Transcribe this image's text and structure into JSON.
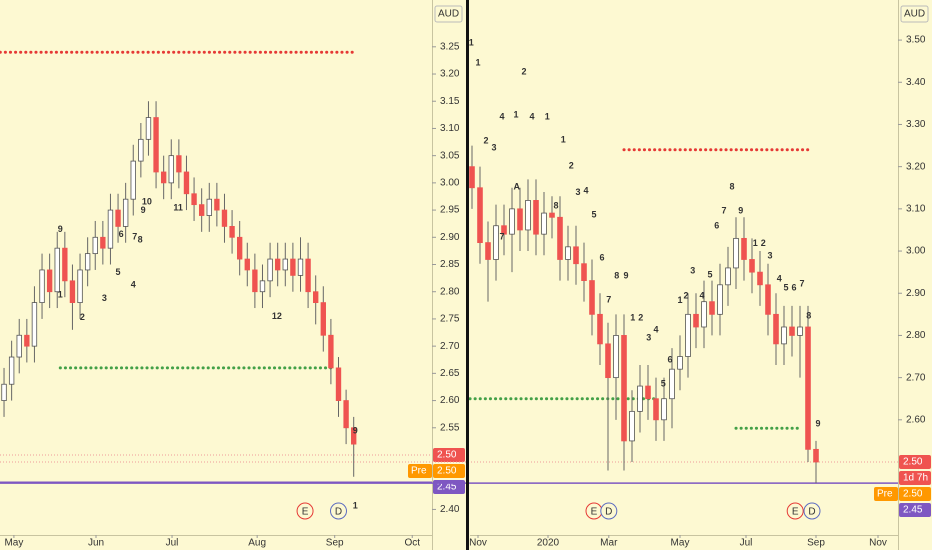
{
  "chart_data": [
    {
      "type": "candlestick",
      "currency": "AUD",
      "ylim": [
        2.353,
        3.336
      ],
      "yticks": [
        3.25,
        {
          "value": 3.2,
          "label": "3.20"
        },
        3.15,
        {
          "value": 3.1,
          "label": "3.10"
        },
        3.05,
        {
          "value": 3,
          "label": "3.00"
        },
        2.95,
        {
          "value": 2.9,
          "label": "2.90"
        },
        2.85,
        {
          "value": 2.8,
          "label": "2.80"
        },
        2.75,
        {
          "value": 2.7,
          "label": "2.70"
        },
        2.65,
        {
          "value": 2.6,
          "label": "2.60"
        },
        2.55,
        {
          "value": 2.4,
          "label": "2.40"
        }
      ],
      "xlim": [
        -0.53,
        56.3
      ],
      "xticks": [
        {
          "value": 1.3,
          "label": "May"
        },
        {
          "value": 12.1,
          "label": "Jun"
        },
        {
          "value": 22.1,
          "label": "Jul"
        },
        {
          "value": 33.3,
          "label": "Aug"
        },
        {
          "value": 43.5,
          "label": "Sep"
        },
        {
          "value": 53.7,
          "label": "Oct"
        }
      ],
      "up_color": "#ffffff",
      "down_color": "#ef5350",
      "open": [
        2.6,
        2.63,
        2.68,
        2.72,
        2.7,
        2.78,
        2.84,
        2.8,
        2.88,
        2.82,
        2.78,
        2.84,
        2.87,
        2.9,
        2.88,
        2.95,
        2.92,
        2.97,
        3.04,
        3.08,
        3.12,
        3.02,
        3.0,
        3.05,
        3.02,
        2.98,
        2.96,
        2.94,
        2.97,
        2.95,
        2.92,
        2.9,
        2.86,
        2.84,
        2.8,
        2.82,
        2.86,
        2.84,
        2.86,
        2.83,
        2.86,
        2.8,
        2.78,
        2.72,
        2.66,
        2.6,
        2.55
      ],
      "high": [
        2.66,
        2.71,
        2.75,
        2.75,
        2.81,
        2.87,
        2.87,
        2.91,
        2.91,
        2.85,
        2.87,
        2.9,
        2.93,
        2.93,
        2.98,
        2.98,
        3.0,
        3.07,
        3.11,
        3.15,
        3.15,
        3.05,
        3.08,
        3.08,
        3.05,
        3.01,
        2.99,
        3.0,
        3.0,
        2.98,
        2.95,
        2.93,
        2.89,
        2.87,
        2.85,
        2.89,
        2.89,
        2.89,
        2.89,
        2.9,
        2.89,
        2.83,
        2.81,
        2.75,
        2.68,
        2.62,
        2.57
      ],
      "low": [
        2.57,
        2.6,
        2.65,
        2.67,
        2.67,
        2.75,
        2.77,
        2.77,
        2.79,
        2.73,
        2.75,
        2.81,
        2.84,
        2.85,
        2.85,
        2.89,
        2.89,
        2.94,
        3.01,
        3.05,
        2.99,
        2.97,
        2.97,
        2.99,
        2.95,
        2.93,
        2.91,
        2.91,
        2.92,
        2.89,
        2.87,
        2.83,
        2.81,
        2.77,
        2.77,
        2.79,
        2.81,
        2.81,
        2.8,
        2.8,
        2.77,
        2.74,
        2.69,
        2.63,
        2.57,
        2.52,
        2.46
      ],
      "close": [
        2.63,
        2.68,
        2.72,
        2.7,
        2.78,
        2.84,
        2.8,
        2.88,
        2.82,
        2.78,
        2.84,
        2.87,
        2.9,
        2.88,
        2.95,
        2.92,
        2.97,
        3.04,
        3.08,
        3.12,
        3.02,
        3.0,
        3.05,
        3.02,
        2.98,
        2.96,
        2.94,
        2.97,
        2.95,
        2.92,
        2.9,
        2.86,
        2.84,
        2.8,
        2.82,
        2.86,
        2.84,
        2.86,
        2.83,
        2.86,
        2.8,
        2.78,
        2.72,
        2.66,
        2.6,
        2.55,
        2.52
      ],
      "levels": [
        {
          "value": 3.24,
          "x": [
            -0.5,
            46
          ],
          "color": "#e53935",
          "style": "dotted"
        },
        {
          "value": 2.66,
          "x": [
            7.4,
            43.5
          ],
          "color": "#43a047",
          "style": "dotted"
        },
        {
          "value": 2.5,
          "color": "#ef9a9a",
          "style": "faint"
        },
        {
          "value": 2.45,
          "color": "#7e57c2",
          "style": "solid"
        }
      ],
      "annotations": [
        {
          "text": "9",
          "x": 7.4,
          "y": 2.914,
          "color": "#2e7d32"
        },
        {
          "text": "1",
          "x": 7.4,
          "y": 2.794,
          "color": "#2e7d32"
        },
        {
          "text": "2",
          "x": 10.3,
          "y": 2.752,
          "color": "#c62828"
        },
        {
          "text": "3",
          "x": 13.2,
          "y": 2.787,
          "color": "#2e7d32"
        },
        {
          "text": "5",
          "x": 15,
          "y": 2.835,
          "color": "#2e7d32"
        },
        {
          "text": "6",
          "x": 15.4,
          "y": 2.905,
          "color": "#2e7d32"
        },
        {
          "text": "4",
          "x": 17,
          "y": 2.812,
          "color": "#2e7d32"
        },
        {
          "text": "7",
          "x": 17.2,
          "y": 2.9,
          "color": "#2e7d32"
        },
        {
          "text": "8",
          "x": 17.9,
          "y": 2.895,
          "color": "#2e7d32"
        },
        {
          "text": "9",
          "x": 18.3,
          "y": 2.949,
          "color": "#2e7d32"
        },
        {
          "text": "10",
          "x": 18.8,
          "y": 2.965,
          "color": "#2e7d32"
        },
        {
          "text": "11",
          "x": 22.9,
          "y": 2.954,
          "color": "#2e7d32"
        },
        {
          "text": "12",
          "x": 35.9,
          "y": 2.754,
          "color": "#2e7d32"
        },
        {
          "text": "9",
          "x": 46.2,
          "y": 2.544,
          "color": "#c62828"
        },
        {
          "text": "1",
          "x": 46.2,
          "y": 2.406,
          "color": "#c62828"
        }
      ],
      "events": [
        {
          "label": "E",
          "x": 39.6,
          "color": "#e53935"
        },
        {
          "label": "D",
          "x": 44,
          "color": "#5c6bc0"
        }
      ],
      "price_tags": [
        {
          "label": "2.50",
          "value": 2.5,
          "color": "#ef5350"
        },
        {
          "prefix": "Pre",
          "label": "2.50",
          "value": 2.5,
          "color": "#ff9800"
        },
        {
          "label": "2.45",
          "value": 2.45,
          "color": "#7e57c2"
        }
      ]
    },
    {
      "type": "candlestick",
      "currency": "AUD",
      "ylim": [
        2.327,
        3.595
      ],
      "yticks": [
        {
          "value": 3.5,
          "label": "3.50"
        },
        {
          "value": 3.4,
          "label": "3.40"
        },
        {
          "value": 3.3,
          "label": "3.30"
        },
        {
          "value": 3.2,
          "label": "3.20"
        },
        {
          "value": 3.1,
          "label": "3.10"
        },
        {
          "value": 3,
          "label": "3.00"
        },
        {
          "value": 2.9,
          "label": "2.90"
        },
        {
          "value": 2.8,
          "label": "2.80"
        },
        {
          "value": 2.7,
          "label": "2.70"
        },
        {
          "value": 2.6,
          "label": "2.60"
        }
      ],
      "xlim": [
        -0.25,
        53.25
      ],
      "xticks": [
        {
          "value": 0.75,
          "label": "Nov"
        },
        {
          "value": 9.5,
          "label": "2020"
        },
        {
          "value": 17.1,
          "label": "Mar"
        },
        {
          "value": 26,
          "label": "May"
        },
        {
          "value": 34.25,
          "label": "Jul"
        },
        {
          "value": 43,
          "label": "Sep"
        },
        {
          "value": 50.75,
          "label": "Nov"
        }
      ],
      "up_color": "#ffffff",
      "down_color": "#ef5350",
      "open": [
        3.2,
        3.15,
        3.02,
        2.98,
        3.06,
        3.04,
        3.1,
        3.05,
        3.12,
        3.04,
        3.09,
        3.08,
        2.98,
        3.01,
        2.97,
        2.93,
        2.85,
        2.78,
        2.7,
        2.8,
        2.55,
        2.62,
        2.68,
        2.65,
        2.6,
        2.65,
        2.72,
        2.75,
        2.85,
        2.82,
        2.88,
        2.85,
        2.92,
        2.96,
        3.03,
        2.98,
        2.95,
        2.92,
        2.85,
        2.78,
        2.82,
        2.8,
        2.82,
        2.53
      ],
      "high": [
        3.25,
        3.2,
        3.07,
        3.11,
        3.11,
        3.15,
        3.15,
        3.17,
        3.17,
        3.14,
        3.13,
        3.13,
        3.06,
        3.06,
        3.02,
        2.98,
        2.9,
        2.83,
        2.85,
        2.85,
        2.67,
        2.73,
        2.73,
        2.7,
        2.7,
        2.77,
        2.8,
        2.9,
        2.9,
        2.93,
        2.93,
        2.97,
        3.01,
        3.08,
        3.08,
        3.03,
        3.0,
        2.97,
        2.9,
        2.87,
        2.87,
        2.87,
        2.87,
        2.55
      ],
      "low": [
        3.1,
        2.97,
        2.88,
        2.93,
        2.99,
        2.95,
        3.0,
        3.0,
        2.99,
        2.99,
        3.03,
        2.93,
        2.93,
        2.92,
        2.88,
        2.8,
        2.73,
        2.48,
        2.6,
        2.48,
        2.5,
        2.57,
        2.6,
        2.55,
        2.55,
        2.58,
        2.67,
        2.7,
        2.77,
        2.77,
        2.8,
        2.8,
        2.87,
        2.91,
        2.93,
        2.9,
        2.87,
        2.8,
        2.73,
        2.73,
        2.75,
        2.7,
        2.5,
        2.45
      ],
      "close": [
        3.15,
        3.02,
        2.98,
        3.06,
        3.04,
        3.1,
        3.05,
        3.12,
        3.04,
        3.09,
        3.08,
        2.98,
        3.01,
        2.97,
        2.93,
        2.85,
        2.78,
        2.7,
        2.8,
        2.55,
        2.62,
        2.68,
        2.65,
        2.6,
        2.65,
        2.72,
        2.75,
        2.85,
        2.82,
        2.88,
        2.85,
        2.92,
        2.96,
        3.03,
        2.98,
        2.95,
        2.92,
        2.85,
        2.78,
        2.82,
        2.8,
        2.82,
        2.53,
        2.5
      ],
      "levels": [
        {
          "value": 3.24,
          "x": [
            19,
            42
          ],
          "color": "#e53935",
          "style": "dotted"
        },
        {
          "value": 2.65,
          "x": [
            -0.25,
            23
          ],
          "color": "#43a047",
          "style": "dotted"
        },
        {
          "value": 2.58,
          "x": [
            33,
            41
          ],
          "color": "#43a047",
          "style": "dotted"
        },
        {
          "value": 2.5,
          "color": "#ef9a9a",
          "style": "faint"
        },
        {
          "value": 2.45,
          "color": "#7e57c2",
          "style": "solid"
        }
      ],
      "annotations": [
        {
          "text": "1",
          "x": -0.1,
          "y": 3.493,
          "color": "#2e7d32"
        },
        {
          "text": "1",
          "x": 0.75,
          "y": 3.445,
          "color": "#c62828"
        },
        {
          "text": "2",
          "x": 1.75,
          "y": 3.26,
          "color": "#c62828"
        },
        {
          "text": "3",
          "x": 2.75,
          "y": 3.244,
          "color": "#2e7d32"
        },
        {
          "text": "4",
          "x": 3.75,
          "y": 3.317,
          "color": "#c62828"
        },
        {
          "text": "7",
          "x": 3.75,
          "y": 3.033,
          "color": "#2e7d32"
        },
        {
          "text": "1",
          "x": 5.5,
          "y": 3.322,
          "color": "#2e7d32"
        },
        {
          "text": "A",
          "x": 5.6,
          "y": 3.152,
          "color": "#2e7d32"
        },
        {
          "text": "2",
          "x": 6.5,
          "y": 3.424,
          "color": "#2e7d32"
        },
        {
          "text": "4",
          "x": 7.5,
          "y": 3.317,
          "color": "#c62828"
        },
        {
          "text": "1",
          "x": 9.4,
          "y": 3.317,
          "color": "#2e7d32"
        },
        {
          "text": "8",
          "x": 10.5,
          "y": 3.107,
          "color": "#2e7d32"
        },
        {
          "text": "1",
          "x": 11.4,
          "y": 3.263,
          "color": "#c62828"
        },
        {
          "text": "2",
          "x": 12.4,
          "y": 3.201,
          "color": "#c62828"
        },
        {
          "text": "3",
          "x": 13.25,
          "y": 3.138,
          "color": "#c62828"
        },
        {
          "text": "4",
          "x": 14.25,
          "y": 3.142,
          "color": "#c62828"
        },
        {
          "text": "5",
          "x": 15.25,
          "y": 3.085,
          "color": "#c62828"
        },
        {
          "text": "6",
          "x": 16.25,
          "y": 2.983,
          "color": "#c62828"
        },
        {
          "text": "7",
          "x": 17.1,
          "y": 2.884,
          "color": "#c62828"
        },
        {
          "text": "8",
          "x": 18.1,
          "y": 2.941,
          "color": "#c62828"
        },
        {
          "text": "9",
          "x": 19.25,
          "y": 2.941,
          "color": "#c62828"
        },
        {
          "text": "1",
          "x": 20.1,
          "y": 2.841,
          "color": "#c62828"
        },
        {
          "text": "2",
          "x": 21.1,
          "y": 2.841,
          "color": "#c62828"
        },
        {
          "text": "3",
          "x": 22.1,
          "y": 2.794,
          "color": "#c62828"
        },
        {
          "text": "4",
          "x": 23,
          "y": 2.813,
          "color": "#c62828"
        },
        {
          "text": "5",
          "x": 23.9,
          "y": 2.685,
          "color": "#c62828"
        },
        {
          "text": "6",
          "x": 24.75,
          "y": 2.742,
          "color": "#c62828"
        },
        {
          "text": "1",
          "x": 26,
          "y": 2.882,
          "color": "#2e7d32"
        },
        {
          "text": "2",
          "x": 26.75,
          "y": 2.893,
          "color": "#2e7d32"
        },
        {
          "text": "3",
          "x": 27.6,
          "y": 2.953,
          "color": "#2e7d32"
        },
        {
          "text": "4",
          "x": 28.75,
          "y": 2.893,
          "color": "#2e7d32"
        },
        {
          "text": "5",
          "x": 29.75,
          "y": 2.943,
          "color": "#2e7d32"
        },
        {
          "text": "6",
          "x": 30.6,
          "y": 3.059,
          "color": "#2e7d32"
        },
        {
          "text": "7",
          "x": 31.5,
          "y": 3.095,
          "color": "#2e7d32"
        },
        {
          "text": "8",
          "x": 32.5,
          "y": 3.152,
          "color": "#2e7d32"
        },
        {
          "text": "9",
          "x": 33.6,
          "y": 3.095,
          "color": "#2e7d32"
        },
        {
          "text": "1",
          "x": 35.4,
          "y": 3.017,
          "color": "#c62828"
        },
        {
          "text": "2",
          "x": 36.4,
          "y": 3.017,
          "color": "#c62828"
        },
        {
          "text": "3",
          "x": 37.25,
          "y": 2.988,
          "color": "#c62828"
        },
        {
          "text": "4",
          "x": 38.4,
          "y": 2.934,
          "color": "#c62828"
        },
        {
          "text": "5",
          "x": 39.25,
          "y": 2.912,
          "color": "#c62828"
        },
        {
          "text": "6",
          "x": 40.25,
          "y": 2.912,
          "color": "#c62828"
        },
        {
          "text": "7",
          "x": 41.25,
          "y": 2.922,
          "color": "#c62828"
        },
        {
          "text": "8",
          "x": 42.1,
          "y": 2.846,
          "color": "#c62828"
        },
        {
          "text": "9",
          "x": 43.25,
          "y": 2.59,
          "color": "#c62828"
        }
      ],
      "events": [
        {
          "label": "E",
          "x": 15.25,
          "color": "#e53935"
        },
        {
          "label": "D",
          "x": 17.1,
          "color": "#5c6bc0"
        },
        {
          "label": "E",
          "x": 40.4,
          "color": "#e53935"
        },
        {
          "label": "D",
          "x": 42.5,
          "color": "#5c6bc0"
        }
      ],
      "price_tags": [
        {
          "label": "2.50",
          "value": 2.5,
          "color": "#ef5350"
        },
        {
          "label": "1d 7h",
          "color": "#ef5350"
        },
        {
          "prefix": "Pre",
          "label": "2.50",
          "value": 2.5,
          "color": "#ff9800"
        },
        {
          "label": "2.45",
          "value": 2.45,
          "color": "#7e57c2"
        }
      ]
    }
  ]
}
